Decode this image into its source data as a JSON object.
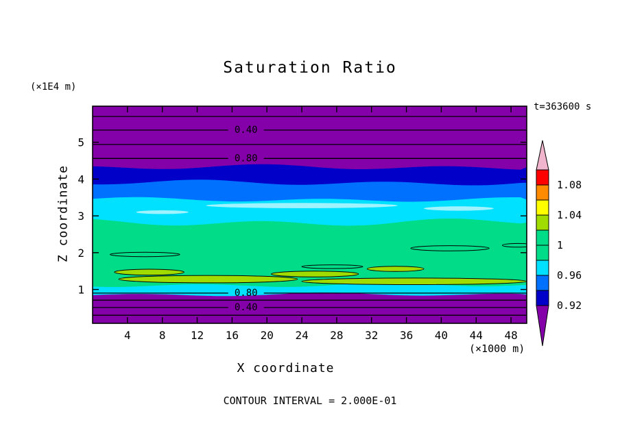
{
  "title": "Saturation Ratio",
  "header": {
    "y_axis_units": "(×1E4 m)",
    "time_label": "t=363600 s"
  },
  "axes": {
    "xlabel": "X coordinate",
    "ylabel": "Z coordinate",
    "x_units_label": "(×1000 m)"
  },
  "footer": {
    "contour_interval_label": "CONTOUR INTERVAL = 2.000E-01"
  },
  "chart_data": {
    "type": "contour",
    "title": "Saturation Ratio",
    "xlabel": "X coordinate",
    "ylabel": "Z coordinate",
    "x_units": "×1000 m",
    "z_units": "×1E4 m",
    "time_seconds": 363600,
    "contour_interval": 0.2,
    "x_range": [
      0,
      49.8
    ],
    "z_range": [
      0.08,
      5.98
    ],
    "x_ticks": [
      4,
      8,
      12,
      16,
      20,
      24,
      28,
      32,
      36,
      40,
      44,
      48
    ],
    "z_ticks": [
      1,
      2,
      3,
      4,
      5
    ],
    "fill_bands": [
      {
        "saturation_ratio": "< 0.92",
        "z_from": 4.32,
        "z_to": 5.98,
        "color": "#8400A8",
        "wobble": 0
      },
      {
        "saturation_ratio": "0.92 - 0.94",
        "z_from": 3.9,
        "z_to": 4.32,
        "color": "#0000C8",
        "wobble": 3
      },
      {
        "saturation_ratio": "0.94 - 0.96",
        "z_from": 3.44,
        "z_to": 3.9,
        "color": "#0070FF",
        "wobble": 3
      },
      {
        "saturation_ratio": "0.96 - 0.98",
        "z_from": 2.82,
        "z_to": 3.44,
        "color": "#00E1FF",
        "wobble": 2.5
      },
      {
        "saturation_ratio": "0.98 - 1.02",
        "z_from": 1.12,
        "z_to": 2.82,
        "color": "#00DC87",
        "wobble": 4
      },
      {
        "saturation_ratio": "0.96 - 0.98",
        "z_from": 0.86,
        "z_to": 1.12,
        "color": "#00E1FF",
        "wobble": 2.5
      },
      {
        "saturation_ratio": "< 0.92",
        "z_from": 0.08,
        "z_to": 0.86,
        "color": "#8400A8",
        "wobble": 2
      }
    ],
    "line_contours": [
      {
        "value": 0.2,
        "z": 5.7,
        "label": ""
      },
      {
        "value": 0.4,
        "z": 5.33,
        "label": "0.40"
      },
      {
        "value": 0.6,
        "z": 4.94,
        "label": ""
      },
      {
        "value": 0.8,
        "z": 4.56,
        "label": "0.80"
      },
      {
        "value": 0.8,
        "z": 0.9,
        "label": "0.80"
      },
      {
        "value": 0.6,
        "z": 0.71,
        "label": ""
      },
      {
        "value": 0.4,
        "z": 0.51,
        "label": "0.40"
      },
      {
        "value": 0.2,
        "z": 0.3,
        "label": ""
      }
    ],
    "contour_label_x": 17.6,
    "blobs": [
      {
        "kind": "supersaturated-patch",
        "x_from": 2.5,
        "x_to": 10.5,
        "z": 1.47,
        "z_half": 0.08,
        "color": "#A0DC00",
        "outline": true
      },
      {
        "kind": "supersaturated-patch",
        "x_from": 3.0,
        "x_to": 23.5,
        "z": 1.28,
        "z_half": 0.1,
        "color": "#A0DC00",
        "outline": true
      },
      {
        "kind": "supersaturated-patch",
        "x_from": 20.5,
        "x_to": 30.5,
        "z": 1.42,
        "z_half": 0.08,
        "color": "#A0DC00",
        "outline": true
      },
      {
        "kind": "supersaturated-patch",
        "x_from": 24.0,
        "x_to": 49.8,
        "z": 1.22,
        "z_half": 0.09,
        "color": "#A0DC00",
        "outline": true
      },
      {
        "kind": "supersaturated-patch",
        "x_from": 31.5,
        "x_to": 38.0,
        "z": 1.56,
        "z_half": 0.07,
        "color": "#A0DC00",
        "outline": true
      },
      {
        "kind": "unit-contour-outline",
        "x_from": 36.5,
        "x_to": 45.5,
        "z": 2.12,
        "z_half": 0.07,
        "color": "none",
        "outline": true
      },
      {
        "kind": "unit-contour-outline",
        "x_from": 2.0,
        "x_to": 10.0,
        "z": 1.95,
        "z_half": 0.06,
        "color": "none",
        "outline": true
      },
      {
        "kind": "unit-contour-outline",
        "x_from": 24.0,
        "x_to": 31.0,
        "z": 1.62,
        "z_half": 0.05,
        "color": "none",
        "outline": true
      },
      {
        "kind": "unit-contour-outline",
        "x_from": 47.0,
        "x_to": 50.5,
        "z": 2.2,
        "z_half": 0.05,
        "color": "none",
        "outline": true
      },
      {
        "kind": "moist-streak",
        "x_from": 13.0,
        "x_to": 35.0,
        "z": 3.28,
        "z_half": 0.07,
        "color": "#9FF3FF",
        "outline": false
      },
      {
        "kind": "moist-streak",
        "x_from": 38.0,
        "x_to": 46.0,
        "z": 3.2,
        "z_half": 0.06,
        "color": "#9FF3FF",
        "outline": false
      },
      {
        "kind": "moist-streak",
        "x_from": 5.0,
        "x_to": 11.0,
        "z": 3.1,
        "z_half": 0.05,
        "color": "#9FF3FF",
        "outline": false
      }
    ],
    "colorbar": {
      "tick_labels": [
        "1.08",
        "1.04",
        "1",
        "0.96",
        "0.92"
      ],
      "tick_values": [
        1.08,
        1.04,
        1.0,
        0.96,
        0.92
      ],
      "label_boundaries": [
        1,
        3,
        5,
        7,
        9
      ],
      "segments_top_to_bottom": [
        {
          "color": "#F0B4CC",
          "range": "> 1.10",
          "shape": "arrow-up"
        },
        {
          "color": "#FF0000",
          "range": "1.08 - 1.10"
        },
        {
          "color": "#FF8C00",
          "range": "1.06 - 1.08"
        },
        {
          "color": "#FFFF00",
          "range": "1.04 - 1.06"
        },
        {
          "color": "#A0DC00",
          "range": "1.02 - 1.04"
        },
        {
          "color": "#00DC87",
          "range": "1.00 - 1.02"
        },
        {
          "color": "#00DC87",
          "range": "0.98 - 1.00"
        },
        {
          "color": "#00E1FF",
          "range": "0.96 - 0.98"
        },
        {
          "color": "#0070FF",
          "range": "0.94 - 0.96"
        },
        {
          "color": "#0000C8",
          "range": "0.92 - 0.94"
        },
        {
          "color": "#8400A8",
          "range": "< 0.92",
          "shape": "arrow-down"
        }
      ]
    }
  }
}
